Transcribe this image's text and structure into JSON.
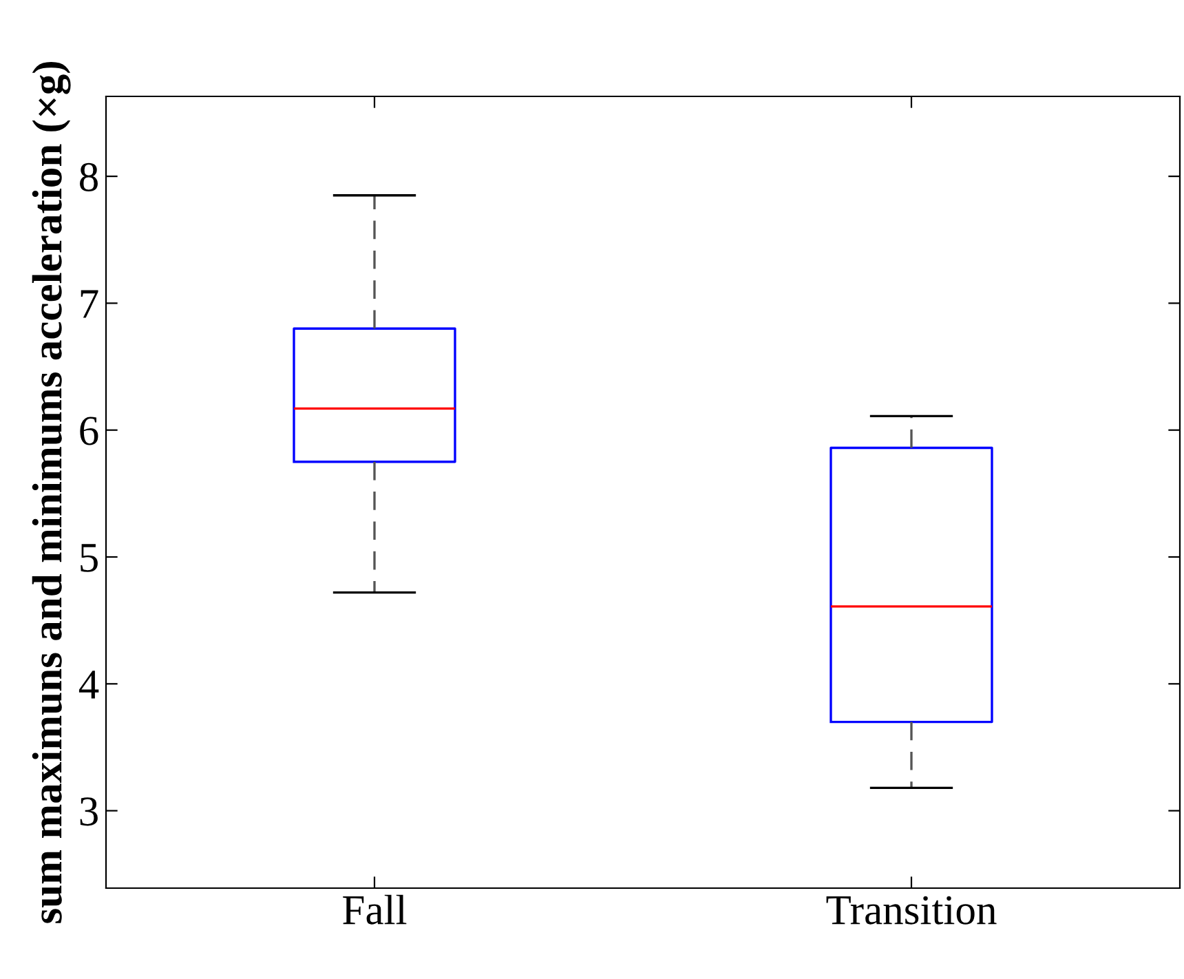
{
  "chart_data": {
    "type": "box",
    "ylabel": "sum maximuns and minimums acceleration (×g)",
    "categories": [
      "Fall",
      "Transition"
    ],
    "boxes": [
      {
        "low": 4.72,
        "q1": 5.75,
        "median": 6.17,
        "q3": 6.8,
        "high": 7.85
      },
      {
        "low": 3.18,
        "q1": 3.7,
        "median": 4.61,
        "q3": 5.86,
        "high": 6.11
      }
    ],
    "color": "#0000ff",
    "ylim": [
      2.39,
      8.63
    ],
    "yticks": [
      3,
      4,
      5,
      6,
      7,
      8
    ],
    "grid": false
  }
}
